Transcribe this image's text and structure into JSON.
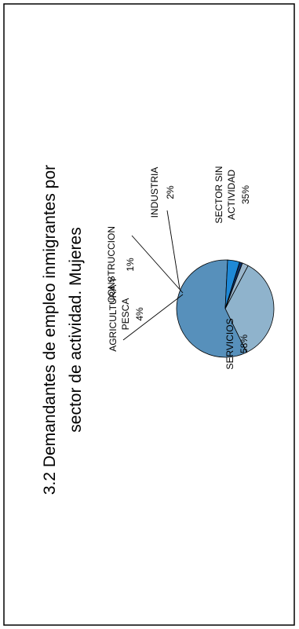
{
  "chart_data": {
    "type": "pie",
    "title": "3.2 Demandantes de empleo inmigrantes por sector de actividad. Mujeres",
    "title_lines": [
      "3.2 Demandantes de empleo inmigrantes por",
      "sector de actividad. Mujeres"
    ],
    "slices": [
      {
        "label_lines": [
          "SECTOR SIN",
          "ACTIVIDAD"
        ],
        "pct_label": "35%",
        "value": 35,
        "color": "#8fb3cc"
      },
      {
        "label_lines": [
          "SERVICIOS"
        ],
        "pct_label": "58%",
        "value": 58,
        "color": "#5790bb"
      },
      {
        "label_lines": [
          "AGRICULTURA Y",
          "PESCA"
        ],
        "pct_label": "4%",
        "value": 4,
        "color": "#1e88d6"
      },
      {
        "label_lines": [
          "CONSTRUCCION"
        ],
        "pct_label": "1%",
        "value": 1,
        "color": "#0c2f63"
      },
      {
        "label_lines": [
          "INDUSTRIA"
        ],
        "pct_label": "2%",
        "value": 2,
        "color": "#9ab6cc"
      }
    ],
    "orientation": "rotated -90deg (reads bottom-to-top)"
  }
}
